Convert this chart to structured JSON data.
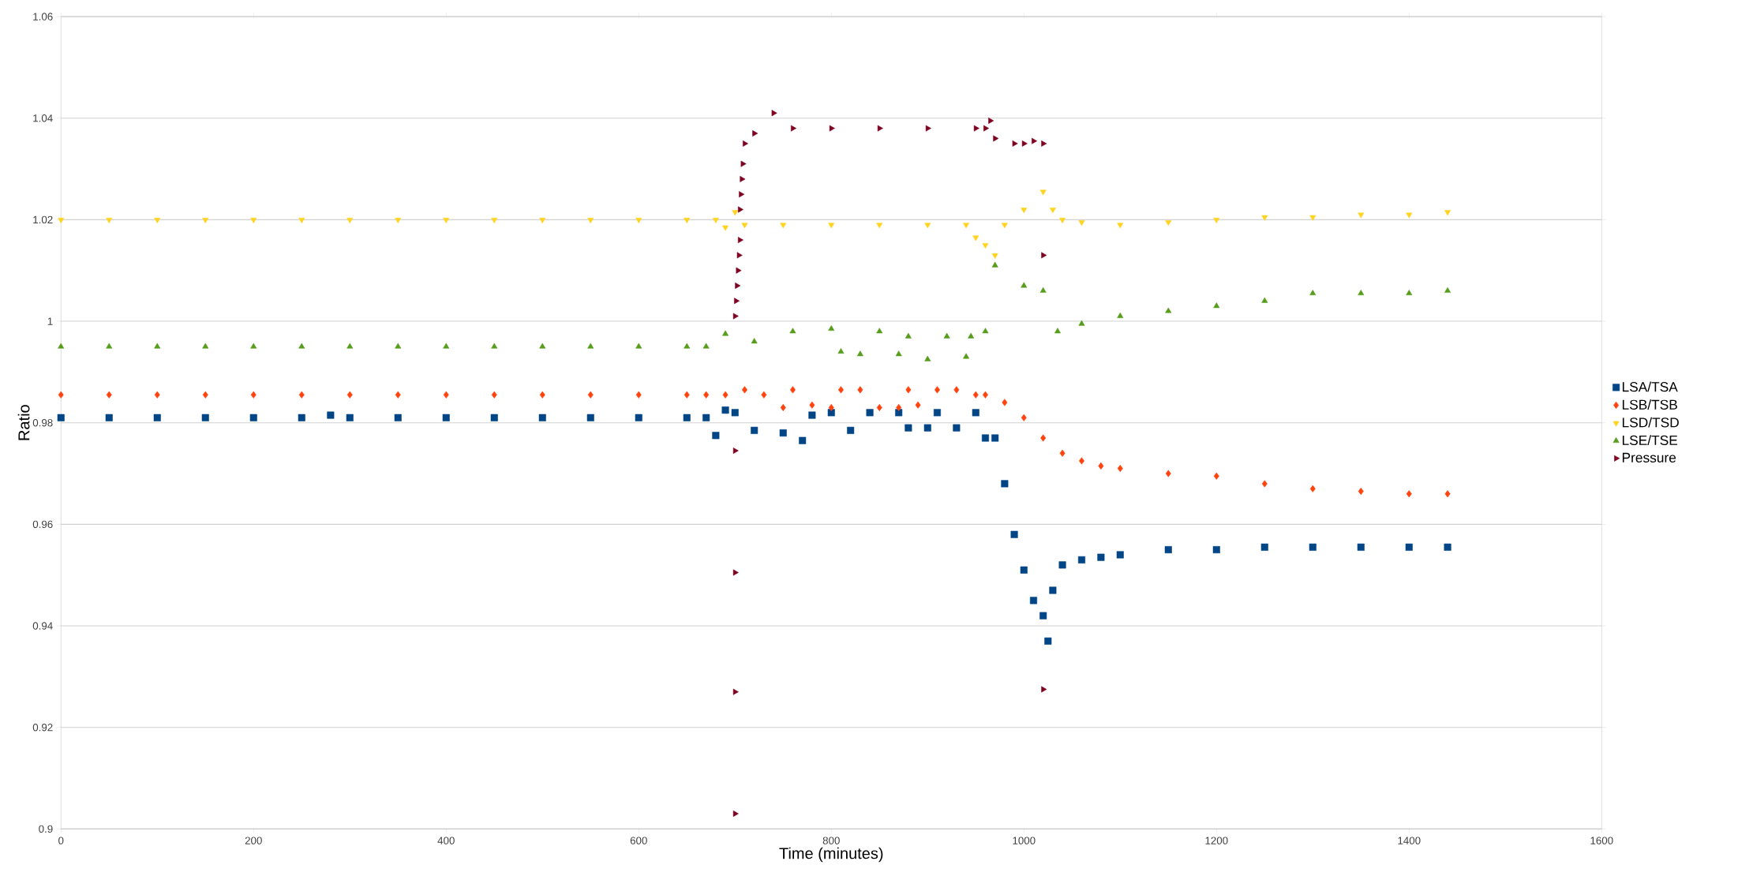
{
  "chart_data": {
    "type": "scatter",
    "xlabel": "Time (minutes)",
    "ylabel": "Ratio",
    "xlim": [
      0,
      1600
    ],
    "xticks": [
      0,
      200,
      400,
      600,
      800,
      1000,
      1200,
      1400,
      1600
    ],
    "ylim": [
      0.9,
      1.06
    ],
    "yticks": [
      0.9,
      0.92,
      0.94,
      0.96,
      0.98,
      1,
      1.02,
      1.04,
      1.06
    ],
    "grid": "y",
    "legend": "right",
    "series": [
      {
        "name": "LSA/TSA",
        "color": "#004586",
        "marker": "square",
        "x": [
          0,
          50,
          100,
          150,
          200,
          250,
          280,
          300,
          350,
          400,
          450,
          500,
          550,
          600,
          650,
          670,
          680,
          690,
          700,
          720,
          750,
          770,
          780,
          800,
          820,
          840,
          870,
          880,
          900,
          910,
          930,
          950,
          960,
          970,
          980,
          990,
          1000,
          1010,
          1020,
          1025,
          1030,
          1040,
          1060,
          1080,
          1100,
          1150,
          1200,
          1250,
          1300,
          1350,
          1400,
          1440
        ],
        "values": [
          0.981,
          0.981,
          0.981,
          0.981,
          0.981,
          0.981,
          0.9815,
          0.981,
          0.981,
          0.981,
          0.981,
          0.981,
          0.981,
          0.981,
          0.981,
          0.981,
          0.9775,
          0.9825,
          0.982,
          0.9785,
          0.978,
          0.9765,
          0.9815,
          0.982,
          0.9785,
          0.982,
          0.982,
          0.979,
          0.979,
          0.982,
          0.979,
          0.982,
          0.977,
          0.977,
          0.968,
          0.958,
          0.951,
          0.945,
          0.942,
          0.937,
          0.947,
          0.952,
          0.953,
          0.9535,
          0.954,
          0.955,
          0.955,
          0.9555,
          0.9555,
          0.9555,
          0.9555,
          0.9555
        ]
      },
      {
        "name": "LSB/TSB",
        "color": "#ff420e",
        "marker": "diamond",
        "x": [
          0,
          50,
          100,
          150,
          200,
          250,
          300,
          350,
          400,
          450,
          500,
          550,
          600,
          650,
          670,
          690,
          710,
          730,
          750,
          760,
          780,
          800,
          810,
          830,
          850,
          870,
          880,
          890,
          910,
          930,
          950,
          960,
          980,
          1000,
          1020,
          1040,
          1060,
          1080,
          1100,
          1150,
          1200,
          1250,
          1300,
          1350,
          1400,
          1440
        ],
        "values": [
          0.9855,
          0.9855,
          0.9855,
          0.9855,
          0.9855,
          0.9855,
          0.9855,
          0.9855,
          0.9855,
          0.9855,
          0.9855,
          0.9855,
          0.9855,
          0.9855,
          0.9855,
          0.9855,
          0.9865,
          0.9855,
          0.983,
          0.9865,
          0.9835,
          0.983,
          0.9865,
          0.9865,
          0.983,
          0.983,
          0.9865,
          0.9835,
          0.9865,
          0.9865,
          0.9855,
          0.9855,
          0.984,
          0.981,
          0.977,
          0.974,
          0.9725,
          0.9715,
          0.971,
          0.97,
          0.9695,
          0.968,
          0.967,
          0.9665,
          0.966,
          0.966
        ]
      },
      {
        "name": "LSD/TSD",
        "color": "#ffd320",
        "marker": "triangle-down",
        "x": [
          0,
          50,
          100,
          150,
          200,
          250,
          300,
          350,
          400,
          450,
          500,
          550,
          600,
          650,
          680,
          690,
          700,
          710,
          750,
          800,
          850,
          900,
          940,
          950,
          960,
          970,
          980,
          1000,
          1020,
          1030,
          1040,
          1060,
          1100,
          1150,
          1200,
          1250,
          1300,
          1350,
          1400,
          1440
        ],
        "values": [
          1.02,
          1.02,
          1.02,
          1.02,
          1.02,
          1.02,
          1.02,
          1.02,
          1.02,
          1.02,
          1.02,
          1.02,
          1.02,
          1.02,
          1.02,
          1.0185,
          1.0215,
          1.019,
          1.019,
          1.019,
          1.019,
          1.019,
          1.019,
          1.0165,
          1.015,
          1.013,
          1.019,
          1.022,
          1.0255,
          1.022,
          1.02,
          1.0195,
          1.019,
          1.0195,
          1.02,
          1.0205,
          1.0205,
          1.021,
          1.021,
          1.0215
        ]
      },
      {
        "name": "LSE/TSE",
        "color": "#579d1c",
        "marker": "triangle",
        "x": [
          0,
          50,
          100,
          150,
          200,
          250,
          300,
          350,
          400,
          450,
          500,
          550,
          600,
          650,
          670,
          690,
          720,
          760,
          800,
          810,
          830,
          850,
          870,
          880,
          900,
          920,
          940,
          945,
          960,
          970,
          1000,
          1020,
          1035,
          1060,
          1100,
          1150,
          1200,
          1250,
          1300,
          1350,
          1400,
          1440
        ],
        "values": [
          0.995,
          0.995,
          0.995,
          0.995,
          0.995,
          0.995,
          0.995,
          0.995,
          0.995,
          0.995,
          0.995,
          0.995,
          0.995,
          0.995,
          0.995,
          0.9975,
          0.996,
          0.998,
          0.9985,
          0.994,
          0.9935,
          0.998,
          0.9935,
          0.997,
          0.9925,
          0.997,
          0.993,
          0.997,
          0.998,
          1.011,
          1.007,
          1.006,
          0.998,
          0.9995,
          1.001,
          1.002,
          1.003,
          1.004,
          1.0055,
          1.0055,
          1.0055,
          1.006
        ]
      },
      {
        "name": "Pressure",
        "color": "#7e0021",
        "marker": "triangle-right",
        "x": [
          700,
          700,
          700,
          700,
          700,
          701,
          702,
          703,
          704,
          705,
          705,
          706,
          707,
          708,
          710,
          720,
          740,
          760,
          800,
          850,
          900,
          950,
          960,
          965,
          970,
          990,
          1000,
          1010,
          1020,
          1020,
          1020
        ],
        "values": [
          0.903,
          0.927,
          0.9505,
          0.9745,
          1.001,
          1.004,
          1.007,
          1.01,
          1.013,
          1.016,
          1.022,
          1.025,
          1.028,
          1.031,
          1.035,
          1.037,
          1.041,
          1.038,
          1.038,
          1.038,
          1.038,
          1.038,
          1.038,
          1.0395,
          1.036,
          1.035,
          1.035,
          1.0355,
          1.035,
          1.013,
          0.9275
        ]
      }
    ]
  }
}
